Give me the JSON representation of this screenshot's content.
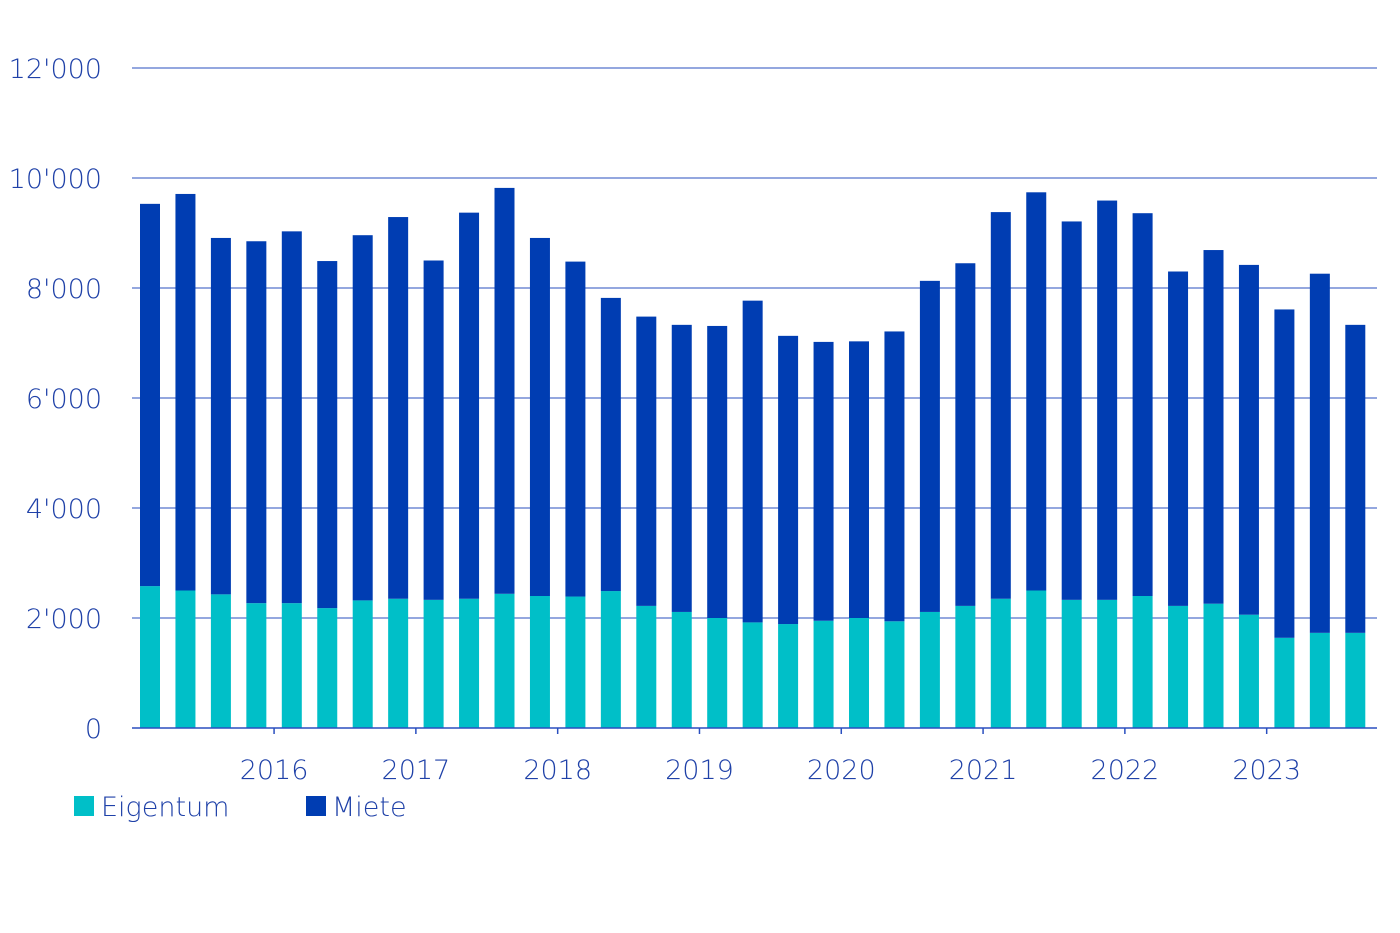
{
  "colors": {
    "text": "#1f41a8",
    "grid": "#2a4fbf",
    "eigentum": "#00bfc8",
    "miete": "#003db2"
  },
  "chart_data": {
    "type": "bar",
    "stacked": true,
    "ylim": [
      0,
      12000
    ],
    "y_ticks": [
      0,
      2000,
      4000,
      6000,
      8000,
      10000,
      12000
    ],
    "y_tick_labels": [
      "0",
      "2'000",
      "4'000",
      "6'000",
      "8'000",
      "10'000",
      "12'000"
    ],
    "x_tick_labels": [
      "2016",
      "2017",
      "2018",
      "2019",
      "2020",
      "2021",
      "2022",
      "2023"
    ],
    "x_tick_after_bar": [
      3,
      7,
      11,
      15,
      19,
      23,
      27,
      31
    ],
    "grid": true,
    "legend_position": "bottom-left",
    "series": [
      {
        "name": "Eigentum",
        "color": "#00bfc8",
        "values": [
          2580,
          2500,
          2430,
          2270,
          2270,
          2180,
          2320,
          2350,
          2330,
          2350,
          2440,
          2400,
          2390,
          2490,
          2220,
          2110,
          2000,
          1920,
          1890,
          1950,
          2000,
          1940,
          2110,
          2220,
          2350,
          2500,
          2330,
          2330,
          2400,
          2220,
          2260,
          2060,
          1640,
          1730,
          1730
        ]
      },
      {
        "name": "Miete",
        "color": "#003db2",
        "values": [
          6950,
          7210,
          6480,
          6580,
          6760,
          6310,
          6640,
          6940,
          6170,
          7020,
          7380,
          6510,
          6090,
          5330,
          5260,
          5220,
          5310,
          5850,
          5240,
          5070,
          5030,
          5270,
          6020,
          6230,
          7030,
          7240,
          6880,
          7260,
          6960,
          6080,
          6430,
          6360,
          5970,
          6530,
          5600
        ]
      }
    ]
  }
}
